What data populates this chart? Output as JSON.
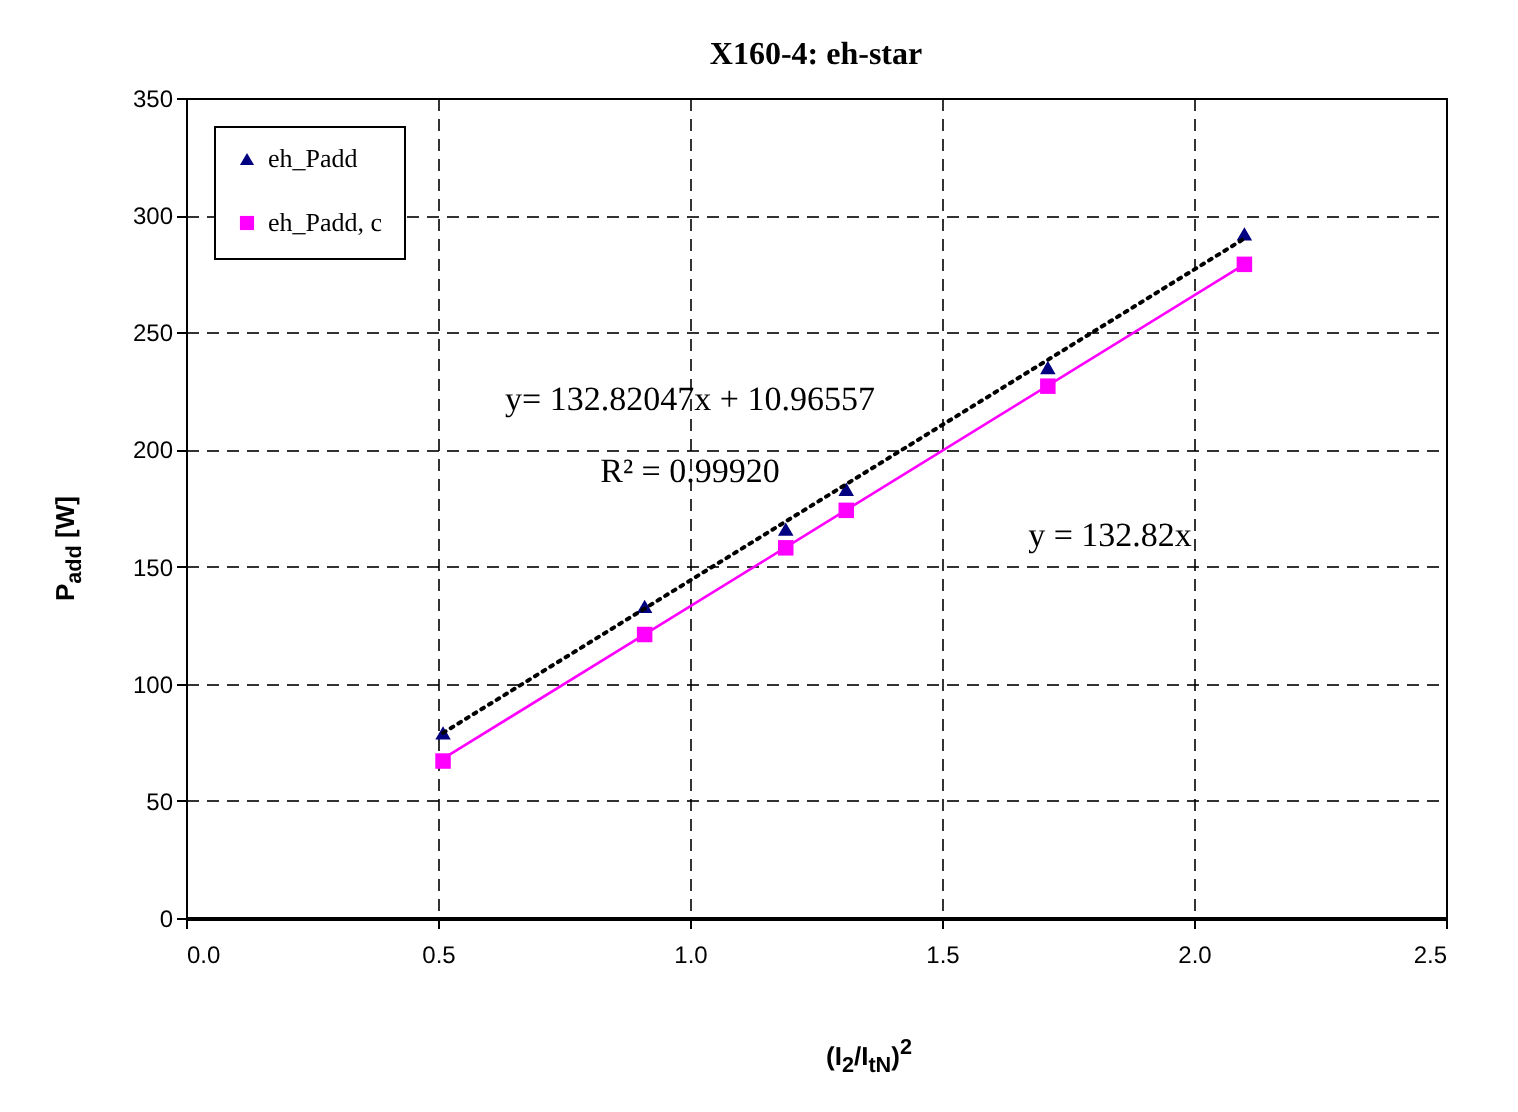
{
  "chart_data": {
    "type": "scatter",
    "title": "X160-4: eh-star",
    "xlabel": "(I$_{2}$/I$_{tN}$)$^{2}$",
    "ylabel": "P$_{add}$ [W]",
    "series": [
      {
        "name": "eh_Padd",
        "color": "#000080",
        "marker": "triangle",
        "x": [
          0.51,
          0.91,
          1.19,
          1.31,
          1.71,
          2.1
        ],
        "values": [
          79,
          133,
          166,
          183,
          235,
          292
        ]
      },
      {
        "name": "eh_Padd, c",
        "color": "#ff00ff",
        "marker": "square",
        "x": [
          0.51,
          0.91,
          1.19,
          1.31,
          1.71,
          2.1
        ],
        "values": [
          67,
          121,
          158,
          174,
          227,
          279
        ]
      },
      {
        "type": "line",
        "color": "#000000",
        "line_style": "dotted",
        "x": [
          0.51,
          2.1
        ],
        "values": [
          79,
          290
        ]
      },
      {
        "type": "line",
        "color": "#ff00ff",
        "line_style": "solid",
        "x": [
          0.51,
          2.1
        ],
        "values": [
          68,
          279
        ]
      }
    ],
    "annotations": [
      "y= 132.82047x + 10.96557",
      "R² = 0.99920",
      "y = 132.82x"
    ],
    "xlim": [
      0,
      2.5
    ],
    "xticks": [
      {
        "value": 0,
        "label": "0.0"
      },
      0.5,
      {
        "value": 1,
        "label": "1.0"
      },
      1.5,
      {
        "value": 2,
        "label": "2.0"
      },
      2.5
    ],
    "ylim": [
      0,
      350
    ],
    "yticks": [
      0,
      50,
      100,
      150,
      200,
      250,
      300,
      350
    ],
    "grid": true,
    "legend": "top left"
  }
}
